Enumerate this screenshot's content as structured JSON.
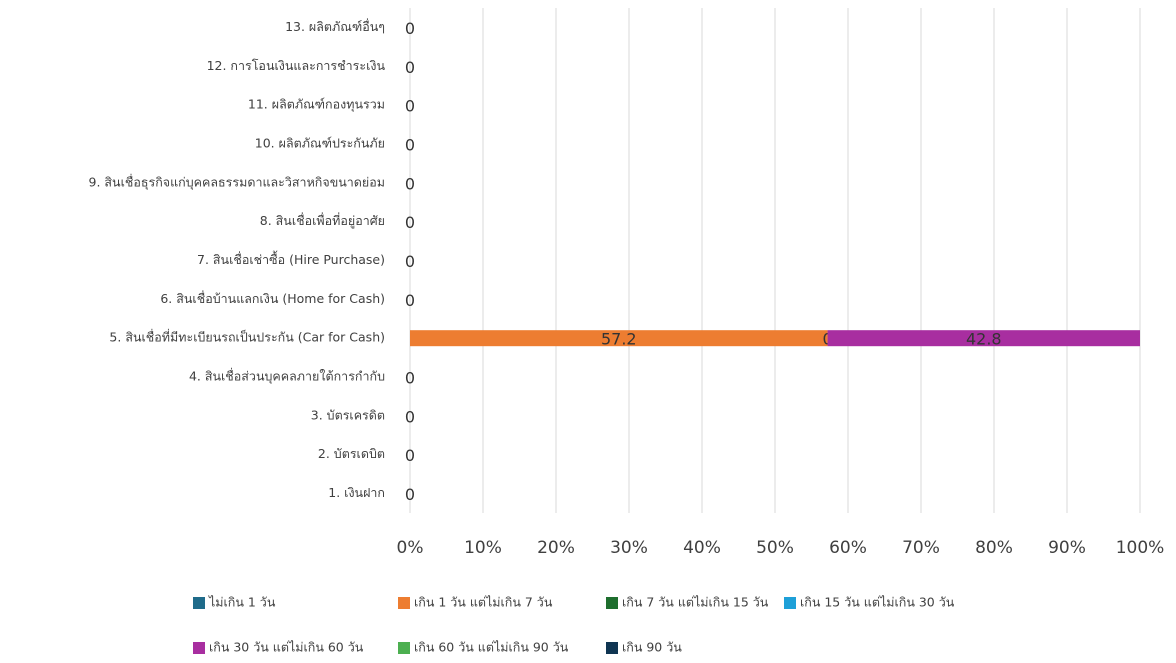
{
  "chart_data": {
    "type": "stacked_bar_horizontal",
    "categories": [
      "1. เงินฝาก",
      "2. บัตรเดบิต",
      "3. บัตรเครดิต",
      "4. สินเชื่อส่วนบุคคลภายใต้การกำกับ",
      "5. สินเชื่อที่มีทะเบียนรถเป็นประกัน (Car for Cash)",
      "6. สินเชื่อบ้านแลกเงิน (Home for Cash)",
      "7. สินเชื่อเช่าซื้อ (Hire Purchase)",
      "8. สินเชื่อเพื่อที่อยู่อาศัย",
      "9. สินเชื่อธุรกิจแก่บุคคลธรรมดาและวิสาหกิจขนาดย่อม",
      "10. ผลิตภัณฑ์ประกันภัย",
      "11. ผลิตภัณฑ์กองทุนรวม",
      "12. การโอนเงินและการชำระเงิน",
      "13. ผลิตภัณฑ์อื่นๆ"
    ],
    "series": [
      {
        "name": "ไม่เกิน 1 วัน",
        "color": "#1f6b8a",
        "values": [
          0,
          0,
          0,
          0,
          null,
          0,
          0,
          0,
          0,
          0,
          0,
          0,
          0
        ]
      },
      {
        "name": "เกิน 1 วัน แต่ไม่เกิน 7 วัน",
        "color": "#ed7d31",
        "values": [
          null,
          null,
          null,
          null,
          57.2,
          null,
          null,
          null,
          null,
          null,
          null,
          null,
          null
        ]
      },
      {
        "name": "เกิน 7 วัน แต่ไม่เกิน 15 วัน",
        "color": "#1e6e2e",
        "values": [
          null,
          null,
          null,
          null,
          0,
          null,
          null,
          null,
          null,
          null,
          null,
          null,
          null
        ]
      },
      {
        "name": "เกิน 15 วัน แต่ไม่เกิน 30 วัน",
        "color": "#1ea0d8",
        "values": [
          null,
          null,
          null,
          null,
          null,
          null,
          null,
          null,
          null,
          null,
          null,
          null,
          null
        ]
      },
      {
        "name": "เกิน 30 วัน แต่ไม่เกิน 60 วัน",
        "color": "#a82ea0",
        "values": [
          null,
          null,
          null,
          null,
          42.8,
          null,
          null,
          null,
          null,
          null,
          null,
          null,
          null
        ]
      },
      {
        "name": "เกิน 60 วัน แต่ไม่เกิน 90 วัน",
        "color": "#4caf50",
        "values": [
          null,
          null,
          null,
          null,
          null,
          null,
          null,
          null,
          null,
          null,
          null,
          null,
          null
        ]
      },
      {
        "name": "เกิน 90 วัน",
        "color": "#0f3552",
        "values": [
          null,
          null,
          null,
          null,
          null,
          null,
          null,
          null,
          null,
          null,
          null,
          null,
          null
        ]
      }
    ],
    "xlim": [
      0,
      100
    ],
    "xticks": [
      {
        "value": 0,
        "label": "0%"
      },
      {
        "value": 10,
        "label": "10%"
      },
      {
        "value": 20,
        "label": "20%"
      },
      {
        "value": 30,
        "label": "30%"
      },
      {
        "value": 40,
        "label": "40%"
      },
      {
        "value": 50,
        "label": "50%"
      },
      {
        "value": 60,
        "label": "60%"
      },
      {
        "value": 70,
        "label": "70%"
      },
      {
        "value": 80,
        "label": "80%"
      },
      {
        "value": 90,
        "label": "90%"
      },
      {
        "value": 100,
        "label": "100%"
      }
    ],
    "grid": true,
    "legend": "bottom"
  }
}
